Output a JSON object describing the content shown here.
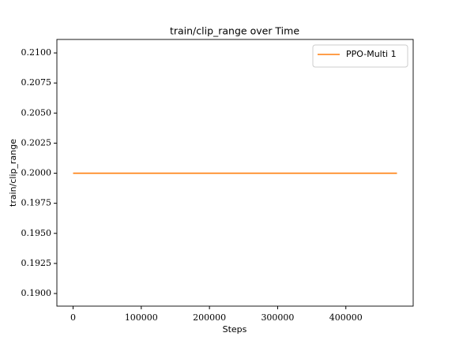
{
  "chart_data": {
    "type": "line",
    "title": "train/clip_range over Time",
    "xlabel": "Steps",
    "ylabel": "train/clip_range",
    "x": [
      0,
      475000
    ],
    "series": [
      {
        "name": "PPO-Multi 1",
        "color": "#ff7f0e",
        "values": [
          0.2,
          0.2
        ]
      }
    ],
    "xlim": [
      -23750,
      498750
    ],
    "xticks": [
      0,
      100000,
      200000,
      300000,
      400000
    ],
    "ylim": [
      0.18895,
      0.21112
    ],
    "yticks": [
      {
        "value": 0.19,
        "label": "0.1900"
      },
      {
        "value": 0.1925,
        "label": "0.1925"
      },
      {
        "value": 0.195,
        "label": "0.1950"
      },
      {
        "value": 0.1975,
        "label": "0.1975"
      },
      {
        "value": 0.2,
        "label": "0.2000"
      },
      {
        "value": 0.2025,
        "label": "0.2025"
      },
      {
        "value": 0.205,
        "label": "0.2050"
      },
      {
        "value": 0.2075,
        "label": "0.2075"
      },
      {
        "value": 0.21,
        "label": "0.2100"
      }
    ],
    "legend": "upper right",
    "grid": false
  }
}
